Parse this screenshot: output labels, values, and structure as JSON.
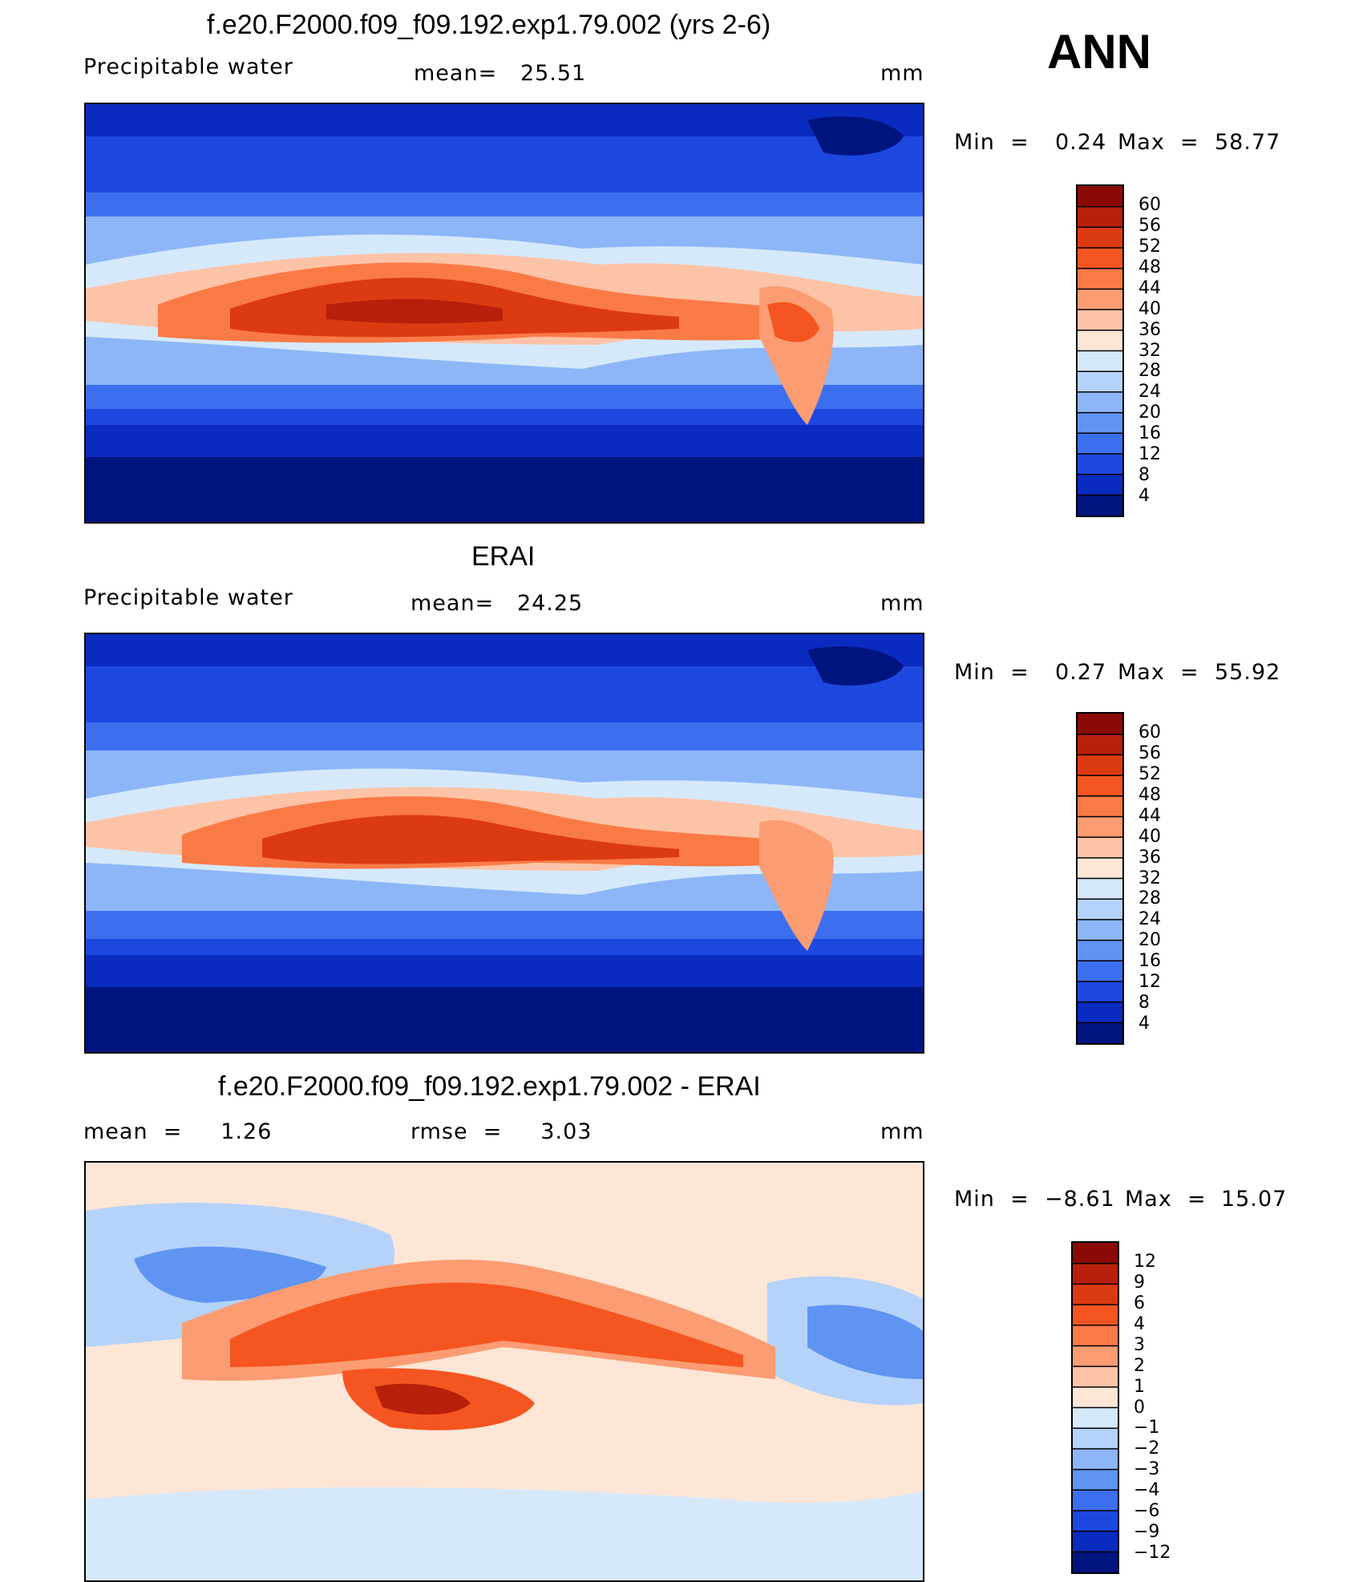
{
  "season": "ANN",
  "panels": [
    {
      "title": "f.e20.F2000.f09_f09.192.exp1.79.002 (yrs 2-6)",
      "left_label": "Precipitable  water",
      "center_label": "mean=   25.51",
      "units": "mm",
      "minmax": {
        "min_label": "Min  =",
        "min_value": "0.24",
        "max_label": "Max  =",
        "max_value": "58.77"
      }
    },
    {
      "title": "ERAI",
      "left_label": "Precipitable  water",
      "center_label": "mean=   24.25",
      "units": "mm",
      "minmax": {
        "min_label": "Min  =",
        "min_value": "0.27",
        "max_label": "Max  =",
        "max_value": "55.92"
      }
    },
    {
      "title": "f.e20.F2000.f09_f09.192.exp1.79.002 - ERAI",
      "left_label": "mean  =     1.26",
      "center_label": "rmse  =     3.03",
      "units": "mm",
      "minmax": {
        "min_label": "Min  =",
        "min_value": "−8.61",
        "max_label": "Max  =",
        "max_value": "15.07"
      }
    }
  ],
  "chart_data": [
    {
      "type": "heatmap",
      "title": "f.e20.F2000.f09_f09.192.exp1.79.002 (yrs 2-6)",
      "subtitle": "Precipitable  water",
      "units": "mm",
      "mean": 25.51,
      "min": 0.24,
      "max": 58.77,
      "colorbar_levels": [
        "60",
        "56",
        "52",
        "48",
        "44",
        "40",
        "36",
        "32",
        "28",
        "24",
        "20",
        "16",
        "12",
        "8",
        "4"
      ],
      "colorbar_colors": [
        "#8b0a05",
        "#b8200c",
        "#dc3a10",
        "#f55520",
        "#fa7a46",
        "#fb9c72",
        "#fdc3a6",
        "#fde6d6",
        "#d6e9fb",
        "#b5d2fa",
        "#8cb6f7",
        "#5f94f2",
        "#3c6ff0",
        "#1d48e0",
        "#0a2bc0",
        "#00147f"
      ]
    },
    {
      "type": "heatmap",
      "title": "ERAI",
      "subtitle": "Precipitable  water",
      "units": "mm",
      "mean": 24.25,
      "min": 0.27,
      "max": 55.92,
      "colorbar_levels": [
        "60",
        "56",
        "52",
        "48",
        "44",
        "40",
        "36",
        "32",
        "28",
        "24",
        "20",
        "16",
        "12",
        "8",
        "4"
      ],
      "colorbar_colors": [
        "#8b0a05",
        "#b8200c",
        "#dc3a10",
        "#f55520",
        "#fa7a46",
        "#fb9c72",
        "#fdc3a6",
        "#fde6d6",
        "#d6e9fb",
        "#b5d2fa",
        "#8cb6f7",
        "#5f94f2",
        "#3c6ff0",
        "#1d48e0",
        "#0a2bc0",
        "#00147f"
      ]
    },
    {
      "type": "heatmap",
      "title": "f.e20.F2000.f09_f09.192.exp1.79.002 - ERAI",
      "units": "mm",
      "mean": 1.26,
      "rmse": 3.03,
      "min": -8.61,
      "max": 15.07,
      "colorbar_levels": [
        "12",
        "9",
        "6",
        "4",
        "3",
        "2",
        "1",
        "0",
        "−1",
        "−2",
        "−3",
        "−4",
        "−6",
        "−9",
        "−12"
      ],
      "colorbar_colors": [
        "#8b0a05",
        "#b8200c",
        "#dc3a10",
        "#f55520",
        "#fa7a46",
        "#fb9c72",
        "#fdc3a6",
        "#fde6d6",
        "#d6e9fb",
        "#b5d2fa",
        "#8cb6f7",
        "#5f94f2",
        "#3c6ff0",
        "#1d48e0",
        "#0a2bc0",
        "#00147f"
      ]
    }
  ]
}
